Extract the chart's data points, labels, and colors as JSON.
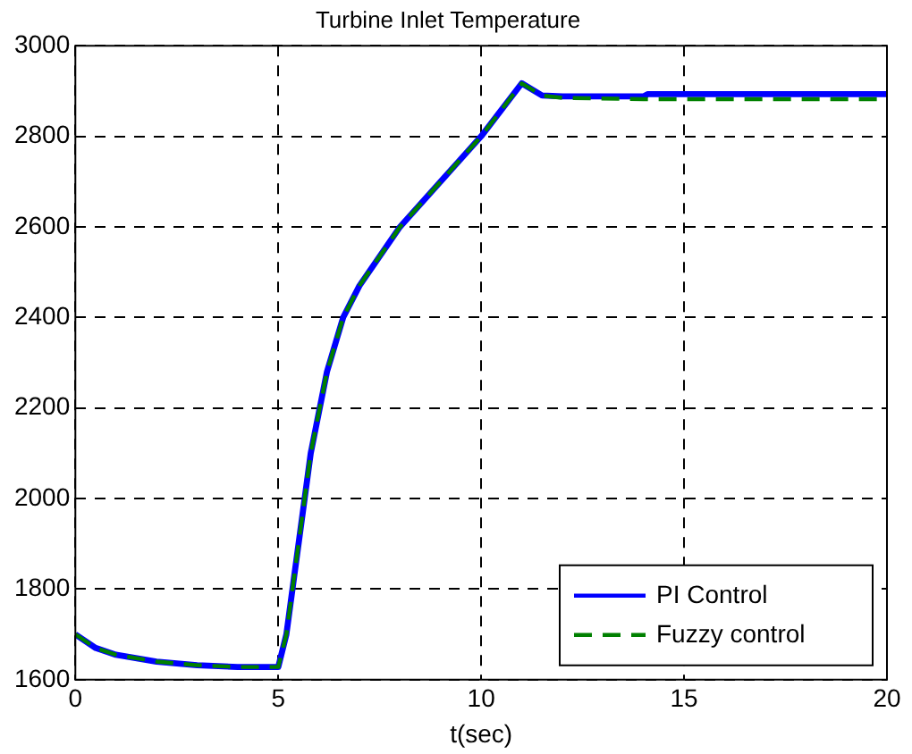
{
  "chart_data": {
    "type": "line",
    "title": "Turbine Inlet Temperature",
    "xlabel": "t(sec)",
    "xlim": [
      0,
      20
    ],
    "xticks": [
      0,
      5,
      10,
      15,
      20
    ],
    "ylim": [
      1600,
      3000
    ],
    "yticks": [
      1600,
      1800,
      2000,
      2200,
      2400,
      2600,
      2800,
      3000
    ],
    "grid": true,
    "legend": "bottom right",
    "marker": "none",
    "series": [
      {
        "name": "PI Control",
        "color": "#0000ff",
        "line_style": "solid",
        "x": [
          0,
          0.5,
          1,
          2,
          3,
          4,
          5,
          5.2,
          5.5,
          5.8,
          6.2,
          6.6,
          7,
          8,
          9,
          10,
          11,
          11.5,
          12,
          14,
          14.1,
          20
        ],
        "values": [
          1700,
          1670,
          1655,
          1640,
          1632,
          1628,
          1628,
          1700,
          1900,
          2100,
          2280,
          2400,
          2470,
          2600,
          2700,
          2800,
          2917,
          2890,
          2888,
          2888,
          2893,
          2893
        ]
      },
      {
        "name": "Fuzzy control",
        "color": "#008000",
        "line_style": "dashed",
        "x": [
          0,
          0.5,
          1,
          2,
          3,
          4,
          5,
          5.2,
          5.5,
          5.8,
          6.2,
          6.6,
          7,
          8,
          9,
          10,
          11,
          11.5,
          12,
          14,
          20
        ],
        "values": [
          1700,
          1670,
          1655,
          1640,
          1632,
          1628,
          1628,
          1700,
          1900,
          2100,
          2280,
          2400,
          2470,
          2600,
          2700,
          2800,
          2917,
          2890,
          2885,
          2882,
          2882
        ]
      }
    ]
  }
}
